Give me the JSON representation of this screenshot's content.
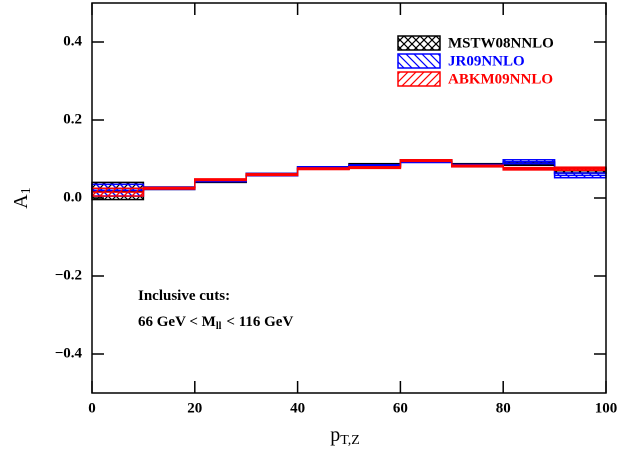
{
  "chart_data": {
    "type": "histogram",
    "x_label": {
      "main": "p",
      "sub": "T,Z"
    },
    "y_label": {
      "main": "A",
      "sub": "1"
    },
    "annotations": [
      {
        "main": "Inclusive cuts:"
      },
      {
        "main": "66 GeV < M",
        "sub": "ll",
        "after": "< 116 GeV"
      }
    ],
    "bins": [
      0,
      10,
      20,
      30,
      40,
      50,
      60,
      70,
      80,
      90,
      100
    ],
    "series": [
      {
        "name": "MSTW08NNLO",
        "color": "#000000",
        "hatch": "cross",
        "values": [
          0.018,
          0.025,
          0.043,
          0.06,
          0.077,
          0.085,
          0.095,
          0.085,
          0.088,
          0.07
        ],
        "errors": [
          0.022,
          0.003,
          0.003,
          0.003,
          0.003,
          0.003,
          0.003,
          0.003,
          0.004,
          0.006
        ]
      },
      {
        "name": "JR09NNLO",
        "color": "#0000ff",
        "hatch": "back",
        "values": [
          0.02,
          0.025,
          0.045,
          0.06,
          0.077,
          0.082,
          0.094,
          0.083,
          0.093,
          0.058
        ],
        "errors": [
          0.015,
          0.003,
          0.003,
          0.003,
          0.003,
          0.003,
          0.003,
          0.003,
          0.005,
          0.006
        ]
      },
      {
        "name": "ABKM09NNLO",
        "color": "#ff0000",
        "hatch": "forward",
        "values": [
          0.015,
          0.025,
          0.047,
          0.06,
          0.075,
          0.078,
          0.096,
          0.082,
          0.075,
          0.075
        ],
        "errors": [
          0.01,
          0.002,
          0.002,
          0.002,
          0.002,
          0.002,
          0.002,
          0.002,
          0.003,
          0.004
        ]
      }
    ],
    "xlim": [
      0,
      100
    ],
    "xticks": [
      0,
      20,
      40,
      60,
      80,
      100
    ],
    "ylim": [
      -0.5,
      0.5
    ],
    "yticks": [
      {
        "value": -0.4,
        "label": "−0.4"
      },
      {
        "value": -0.2,
        "label": "−0.2"
      },
      {
        "value": 0,
        "label": "0.0"
      },
      {
        "value": 0.2,
        "label": "0.2"
      },
      {
        "value": 0.4,
        "label": "0.4"
      }
    ],
    "legend": "upper right"
  }
}
